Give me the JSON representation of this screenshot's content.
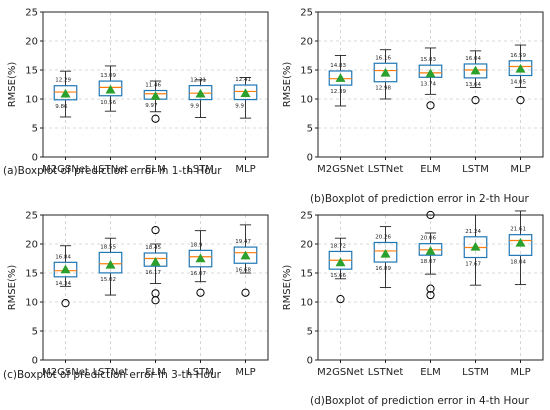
{
  "chart_data": [
    {
      "type": "box",
      "caption": "(a)Boxplot of prediction error in 1-th Hour",
      "ylabel": "RMSE(%)",
      "ylim": [
        0,
        25
      ],
      "yticks": [
        0,
        5,
        10,
        15,
        20,
        25
      ],
      "grid": true,
      "categories": [
        "M2GSNet",
        "LSTNet",
        "ELM",
        "LSTM",
        "MLP"
      ],
      "boxes": [
        {
          "whislo": 6.9,
          "q1": 9.86,
          "med": 11.2,
          "q3": 12.29,
          "whishi": 14.8,
          "mean": 10.9,
          "fliers": [],
          "label_q3": "12.29",
          "label_q1": "9.86"
        },
        {
          "whislo": 7.9,
          "q1": 10.56,
          "med": 12.0,
          "q3": 13.09,
          "whishi": 15.7,
          "mean": 11.6,
          "fliers": [],
          "label_q3": "13.09",
          "label_q1": "10.56"
        },
        {
          "whislo": 7.8,
          "q1": 9.97,
          "med": 10.9,
          "q3": 11.46,
          "whishi": 13.1,
          "mean": 10.5,
          "fliers": [
            6.6
          ],
          "label_q3": "11.46",
          "label_q1": "9.97"
        },
        {
          "whislo": 6.8,
          "q1": 9.9,
          "med": 11.0,
          "q3": 12.31,
          "whishi": 13.3,
          "mean": 10.9,
          "fliers": [],
          "label_q3": "12.31",
          "label_q1": "9.9"
        },
        {
          "whislo": 6.7,
          "q1": 9.9,
          "med": 11.3,
          "q3": 12.41,
          "whishi": 13.7,
          "mean": 11.0,
          "fliers": [],
          "label_q3": "12.41",
          "label_q1": "9.9"
        }
      ]
    },
    {
      "type": "box",
      "caption": "(b)Boxplot of prediction error in 2-th Hour",
      "ylabel": "RMSE(%)",
      "ylim": [
        0,
        25
      ],
      "yticks": [
        0,
        5,
        10,
        15,
        20,
        25
      ],
      "grid": true,
      "categories": [
        "M2GSNet",
        "LSTNet",
        "ELM",
        "LSTM",
        "MLP"
      ],
      "boxes": [
        {
          "whislo": 8.8,
          "q1": 12.39,
          "med": 13.5,
          "q3": 14.83,
          "whishi": 17.5,
          "mean": 13.6,
          "fliers": [],
          "label_q3": "14.83",
          "label_q1": "12.39"
        },
        {
          "whislo": 10.0,
          "q1": 12.98,
          "med": 14.9,
          "q3": 16.16,
          "whishi": 18.5,
          "mean": 14.5,
          "fliers": [],
          "label_q3": "16.16",
          "label_q1": "12.98"
        },
        {
          "whislo": 10.8,
          "q1": 13.74,
          "med": 14.5,
          "q3": 15.83,
          "whishi": 18.8,
          "mean": 14.4,
          "fliers": [
            8.9
          ],
          "label_q3": "15.83",
          "label_q1": "13.74"
        },
        {
          "whislo": 12.0,
          "q1": 13.64,
          "med": 15.0,
          "q3": 16.04,
          "whishi": 18.3,
          "mean": 14.9,
          "fliers": [
            9.8
          ],
          "label_q3": "16.04",
          "label_q1": "13.64"
        },
        {
          "whislo": 12.0,
          "q1": 14.05,
          "med": 15.6,
          "q3": 16.59,
          "whishi": 19.3,
          "mean": 15.2,
          "fliers": [
            9.8
          ],
          "label_q3": "16.59",
          "label_q1": "14.05"
        }
      ]
    },
    {
      "type": "box",
      "caption": "(c)Boxplot of prediction error in 3-th Hour",
      "ylabel": "RMSE(%)",
      "ylim": [
        0,
        25
      ],
      "yticks": [
        0,
        5,
        10,
        15,
        20,
        25
      ],
      "grid": true,
      "categories": [
        "M2GSNet",
        "LSTNet",
        "ELM",
        "LSTM",
        "MLP"
      ],
      "boxes": [
        {
          "whislo": 12.7,
          "q1": 14.34,
          "med": 15.4,
          "q3": 16.84,
          "whishi": 19.7,
          "mean": 15.6,
          "fliers": [
            9.8
          ],
          "label_q3": "16.84",
          "label_q1": "14.34"
        },
        {
          "whislo": 11.2,
          "q1": 15.02,
          "med": 16.6,
          "q3": 18.55,
          "whishi": 21.0,
          "mean": 16.4,
          "fliers": [],
          "label_q3": "18.55",
          "label_q1": "15.02"
        },
        {
          "whislo": 13.2,
          "q1": 16.17,
          "med": 17.5,
          "q3": 18.45,
          "whishi": 20.0,
          "mean": 16.9,
          "fliers": [
            22.4,
            11.5,
            10.3
          ],
          "label_q3": "18.45",
          "label_q1": "16.17"
        },
        {
          "whislo": 13.5,
          "q1": 16.07,
          "med": 17.8,
          "q3": 18.9,
          "whishi": 22.3,
          "mean": 17.5,
          "fliers": [
            11.6
          ],
          "label_q3": "18.9",
          "label_q1": "16.07"
        },
        {
          "whislo": 15.0,
          "q1": 16.68,
          "med": 18.5,
          "q3": 19.47,
          "whishi": 23.3,
          "mean": 18.0,
          "fliers": [
            11.6
          ],
          "label_q3": "19.47",
          "label_q1": "16.68"
        }
      ]
    },
    {
      "type": "box",
      "caption": "(d)Boxplot of prediction error in 4-th Hour",
      "ylabel": "RMSE(%)",
      "ylim": [
        0,
        25
      ],
      "yticks": [
        0,
        5,
        10,
        15,
        20,
        25
      ],
      "grid": true,
      "categories": [
        "M2GSNet",
        "LSTNet",
        "ELM",
        "LSTM",
        "MLP"
      ],
      "boxes": [
        {
          "whislo": 14.0,
          "q1": 15.66,
          "med": 17.2,
          "q3": 18.72,
          "whishi": 21.0,
          "mean": 16.8,
          "fliers": [
            10.5
          ],
          "label_q3": "18.72",
          "label_q1": "15.66"
        },
        {
          "whislo": 12.5,
          "q1": 16.89,
          "med": 18.8,
          "q3": 20.26,
          "whishi": 23.0,
          "mean": 18.3,
          "fliers": [],
          "label_q3": "20.26",
          "label_q1": "16.89"
        },
        {
          "whislo": 14.8,
          "q1": 18.07,
          "med": 19.0,
          "q3": 20.06,
          "whishi": 21.9,
          "mean": 18.8,
          "fliers": [
            25.0,
            12.3,
            11.2
          ],
          "label_q3": "20.06",
          "label_q1": "18.07"
        },
        {
          "whislo": 12.9,
          "q1": 17.67,
          "med": 19.4,
          "q3": 21.24,
          "whishi": 25.0,
          "mean": 19.5,
          "fliers": [],
          "label_q3": "21.24",
          "label_q1": "17.67"
        },
        {
          "whislo": 13.0,
          "q1": 18.04,
          "med": 20.6,
          "q3": 21.61,
          "whishi": 25.7,
          "mean": 20.2,
          "fliers": [],
          "label_q3": "21.61",
          "label_q1": "18.04"
        }
      ]
    }
  ],
  "colors": {
    "box": "#1f77b4",
    "median": "#ff7f0e",
    "mean": "#2ca02c",
    "whisker": "#222222",
    "grid": "#cccccc",
    "axis": "#222222"
  }
}
